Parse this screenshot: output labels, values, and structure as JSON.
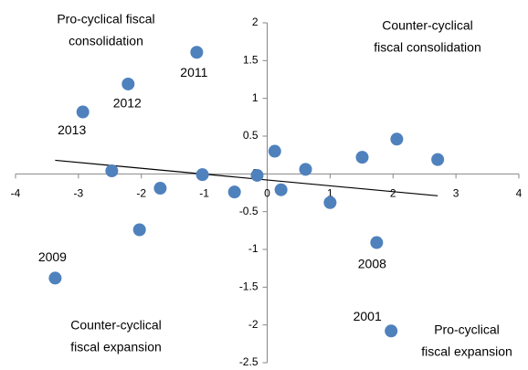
{
  "chart_data": {
    "type": "scatter",
    "series": [
      {
        "color": "#4f81bd",
        "x": [
          -1.12,
          -2.21,
          -2.93,
          -3.37,
          1.74,
          1.97,
          -2.47,
          -1.7,
          -2.03,
          -1.03,
          -0.52,
          -0.16,
          0.12,
          0.22,
          0.61,
          1.0,
          1.51,
          2.06,
          2.71
        ],
        "values": [
          1.61,
          1.19,
          0.82,
          -1.38,
          -0.91,
          -2.08,
          0.04,
          -0.19,
          -0.74,
          -0.01,
          -0.24,
          -0.02,
          0.3,
          -0.21,
          0.06,
          -0.38,
          0.22,
          0.46,
          0.19
        ],
        "labels": [
          "2011",
          "2012",
          "2013",
          "2009",
          "2008",
          "2001",
          null,
          null,
          null,
          null,
          null,
          null,
          null,
          null,
          null,
          null,
          null,
          null,
          null
        ]
      }
    ],
    "trendline": {
      "x": [
        -3.37,
        2.71
      ],
      "values": [
        0.18,
        -0.29
      ],
      "color": "#000000"
    },
    "xlim": [
      -4,
      4
    ],
    "xticks": [
      -4,
      -3,
      -2,
      -1,
      0,
      1,
      2,
      3,
      4
    ],
    "ylim": [
      -2.5,
      2
    ],
    "yticks": [
      -2.5,
      -2,
      -1.5,
      -1,
      -0.5,
      0,
      0.5,
      1,
      1.5,
      2
    ],
    "annotations": [
      {
        "lines": [
          "Pro-cyclical fiscal",
          "consolidation"
        ]
      },
      {
        "lines": [
          "Counter-cyclical",
          "fiscal consolidation"
        ]
      },
      {
        "lines": [
          "Counter-cyclical",
          "fiscal expansion"
        ]
      },
      {
        "lines": [
          "Pro-cyclical",
          "fiscal expansion"
        ]
      }
    ]
  }
}
